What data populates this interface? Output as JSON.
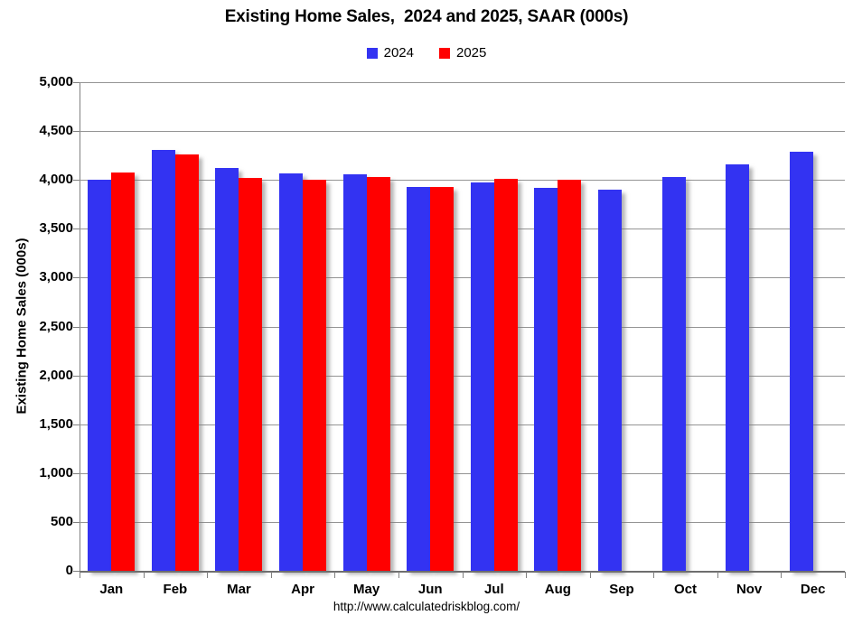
{
  "page": {
    "title": "Existing Home Sales,  2024 and 2025, SAAR (000s)",
    "footer_url": "http://www.calculatedriskblog.com/"
  },
  "colors": {
    "series_2024": "#3333F2",
    "series_2025": "#FF0000",
    "gridline": "#949494",
    "axis": "#808080"
  },
  "chart_data": {
    "type": "bar",
    "title": "Existing Home Sales,  2024 and 2025, SAAR (000s)",
    "categories": [
      "Jan",
      "Feb",
      "Mar",
      "Apr",
      "May",
      "Jun",
      "Jul",
      "Aug",
      "Sep",
      "Oct",
      "Nov",
      "Dec"
    ],
    "series": [
      {
        "name": "2024",
        "color": "#3333F2",
        "values": [
          4000,
          4310,
          4120,
          4070,
          4060,
          3930,
          3970,
          3920,
          3900,
          4030,
          4160,
          4290
        ]
      },
      {
        "name": "2025",
        "color": "#FF0000",
        "values": [
          4080,
          4260,
          4020,
          4000,
          4030,
          3930,
          4010,
          4000,
          null,
          null,
          null,
          null
        ]
      }
    ],
    "xlabel": "",
    "ylabel": "Existing Home Sales (000s)",
    "ylim": [
      0,
      5000
    ],
    "ytick_step": 500,
    "ytick_labels": [
      "0",
      "500",
      "1,000",
      "1,500",
      "2,000",
      "2,500",
      "3,000",
      "3,500",
      "4,000",
      "4,500",
      "5,000"
    ],
    "grid": true,
    "legend_position": "top",
    "footer": "http://www.calculatedriskblog.com/"
  }
}
